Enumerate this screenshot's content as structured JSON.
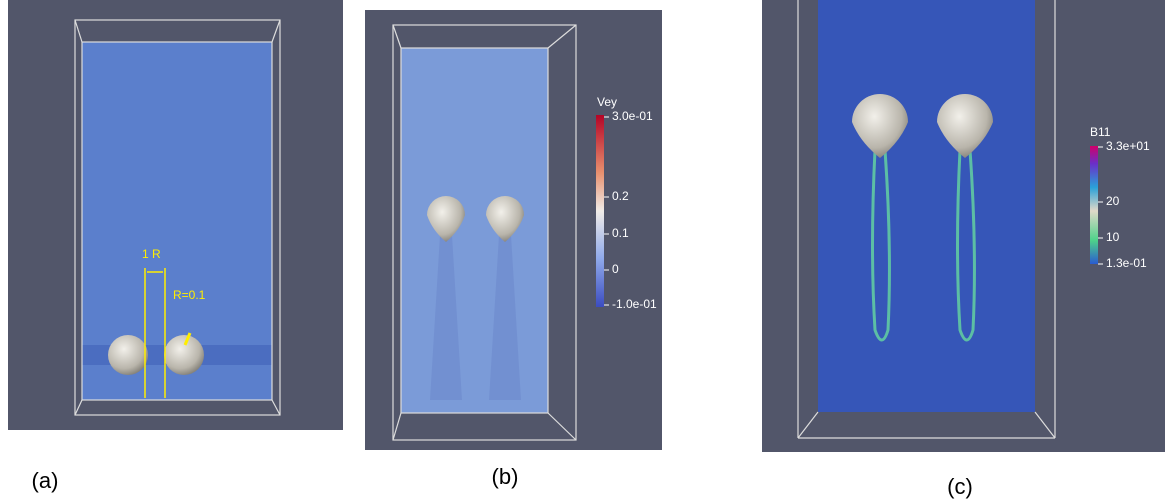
{
  "panels": [
    {
      "label": "(a)",
      "annotations": [
        "1 R",
        "R=0.1"
      ]
    },
    {
      "label": "(b)",
      "colorbar": {
        "title": "Vey",
        "ticks": [
          "3.0e-01",
          "0.2",
          "0.1",
          "0",
          "-1.0e-01"
        ]
      }
    },
    {
      "label": "(c)",
      "colorbar": {
        "title": "B11",
        "ticks": [
          "3.3e+01",
          "20",
          "10",
          "1.3e-01"
        ]
      }
    }
  ]
}
